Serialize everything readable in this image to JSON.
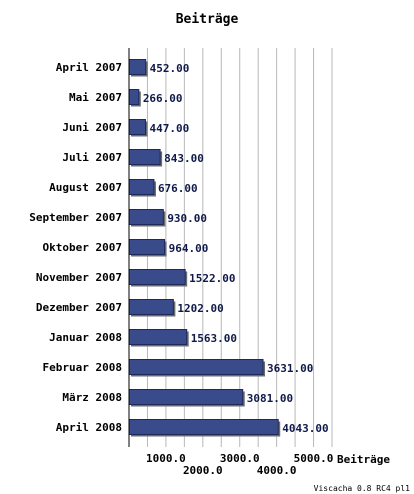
{
  "chart_data": {
    "type": "bar",
    "orientation": "horizontal",
    "title": "Beiträge",
    "xlabel": "Beiträge",
    "ylabel": "",
    "xlim": [
      0,
      5500
    ],
    "grid": true,
    "categories": [
      "April 2007",
      "Mai 2007",
      "Juni 2007",
      "Juli 2007",
      "August 2007",
      "September 2007",
      "Oktober 2007",
      "November 2007",
      "Dezember 2007",
      "Januar 2008",
      "Februar 2008",
      "März 2008",
      "April 2008"
    ],
    "values": [
      452,
      266,
      447,
      843,
      676,
      930,
      964,
      1522,
      1202,
      1563,
      3631,
      3081,
      4043
    ],
    "value_labels": [
      "452.00",
      "266.00",
      "447.00",
      "843.00",
      "676.00",
      "930.00",
      "964.00",
      "1522.00",
      "1202.00",
      "1563.00",
      "3631.00",
      "3081.00",
      "4043.00"
    ],
    "x_ticks": [
      {
        "value": 1000,
        "label": "1000.0"
      },
      {
        "value": 2000,
        "label": "2000.0"
      },
      {
        "value": 3000,
        "label": "3000.0"
      },
      {
        "value": 4000,
        "label": "4000.0"
      },
      {
        "value": 5000,
        "label": "5000.0"
      }
    ],
    "bar_color": "#3a4b8c",
    "bar_edge_color": "#1e2a5a",
    "bar_shadow_color": "#6b6b6b",
    "grid_color": "#b8b8b8",
    "footer": "Viscacha 0.8 RC4 pl1"
  }
}
